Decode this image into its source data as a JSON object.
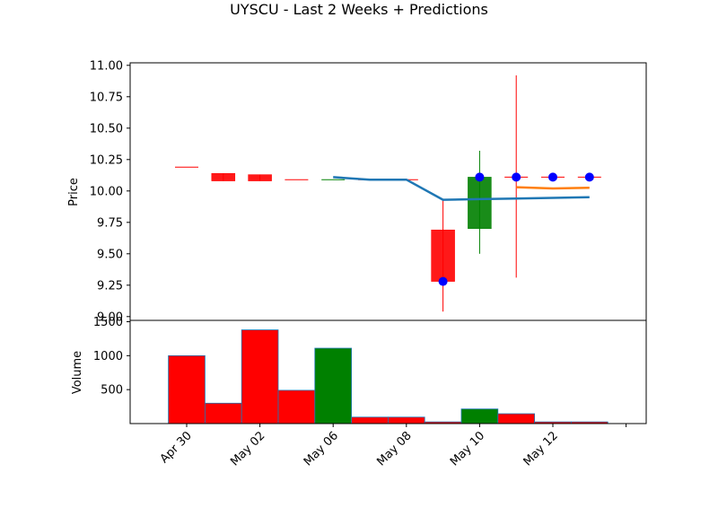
{
  "chart_data": {
    "type": "candlestick",
    "title": "UYSCU - Last 2 Weeks + Predictions",
    "price_panel": {
      "ylabel": "Price",
      "ylim": [
        8.97,
        11.02
      ],
      "yticks": [
        "9.00",
        "9.25",
        "9.50",
        "9.75",
        "10.00",
        "10.25",
        "10.50",
        "10.75",
        "11.00"
      ],
      "candles": [
        {
          "x": 0,
          "open": 10.19,
          "high": 10.19,
          "low": 10.19,
          "close": 10.19,
          "dir": "down"
        },
        {
          "x": 1,
          "open": 10.14,
          "high": 10.14,
          "low": 10.08,
          "close": 10.08,
          "dir": "down"
        },
        {
          "x": 2,
          "open": 10.13,
          "high": 10.13,
          "low": 10.08,
          "close": 10.08,
          "dir": "down"
        },
        {
          "x": 3,
          "open": 10.09,
          "high": 10.09,
          "low": 10.09,
          "close": 10.09,
          "dir": "down"
        },
        {
          "x": 4,
          "open": 10.09,
          "high": 10.09,
          "low": 10.09,
          "close": 10.09,
          "dir": "up"
        },
        {
          "x": 5,
          "open": 10.09,
          "high": 10.09,
          "low": 10.09,
          "close": 10.09,
          "dir": "down"
        },
        {
          "x": 6,
          "open": 10.09,
          "high": 10.09,
          "low": 10.09,
          "close": 10.09,
          "dir": "down"
        },
        {
          "x": 7,
          "open": 9.69,
          "high": 9.93,
          "low": 9.04,
          "close": 9.28,
          "dir": "down"
        },
        {
          "x": 8,
          "open": 9.7,
          "high": 10.32,
          "low": 9.5,
          "close": 10.11,
          "dir": "up"
        },
        {
          "x": 9,
          "open": 10.11,
          "high": 10.92,
          "low": 9.31,
          "close": 10.11,
          "dir": "down"
        },
        {
          "x": 10,
          "open": 10.11,
          "high": 10.11,
          "low": 10.11,
          "close": 10.11,
          "dir": "down"
        },
        {
          "x": 11,
          "open": 10.11,
          "high": 10.11,
          "low": 10.11,
          "close": 10.11,
          "dir": "down"
        }
      ],
      "lines": [
        {
          "color": "#1f77b4",
          "points": [
            [
              4,
              10.11
            ],
            [
              5,
              10.09
            ],
            [
              6,
              10.09
            ],
            [
              7,
              9.93
            ],
            [
              8,
              9.935
            ],
            [
              9,
              9.94
            ],
            [
              10,
              9.945
            ],
            [
              11,
              9.95
            ]
          ]
        },
        {
          "color": "#ff7f0e",
          "points": [
            [
              9,
              10.03
            ],
            [
              10,
              10.02
            ],
            [
              11,
              10.025
            ]
          ]
        }
      ],
      "dots": {
        "color": "#0000ff",
        "points": [
          [
            7,
            9.28
          ],
          [
            8,
            10.11
          ],
          [
            9,
            10.11
          ],
          [
            10,
            10.11
          ],
          [
            11,
            10.11
          ]
        ]
      }
    },
    "volume_panel": {
      "ylabel": "Volume",
      "ylim": [
        0,
        1520
      ],
      "yticks": [
        "500",
        "1000",
        "1500"
      ],
      "bars": [
        {
          "x": 0,
          "value": 1000,
          "dir": "down"
        },
        {
          "x": 1,
          "value": 300,
          "dir": "down"
        },
        {
          "x": 2,
          "value": 1380,
          "dir": "down"
        },
        {
          "x": 3,
          "value": 490,
          "dir": "down"
        },
        {
          "x": 4,
          "value": 1110,
          "dir": "up"
        },
        {
          "x": 5,
          "value": 95,
          "dir": "down"
        },
        {
          "x": 6,
          "value": 95,
          "dir": "down"
        },
        {
          "x": 7,
          "value": 25,
          "dir": "down"
        },
        {
          "x": 8,
          "value": 215,
          "dir": "up"
        },
        {
          "x": 9,
          "value": 145,
          "dir": "down"
        },
        {
          "x": 10,
          "value": 25,
          "dir": "down"
        },
        {
          "x": 11,
          "value": 25,
          "dir": "down"
        }
      ]
    },
    "x_ticks": [
      {
        "x": 0,
        "label": "Apr 30"
      },
      {
        "x": 2,
        "label": "May 02"
      },
      {
        "x": 4,
        "label": "May 06"
      },
      {
        "x": 6,
        "label": "May 08"
      },
      {
        "x": 8,
        "label": "May 10"
      },
      {
        "x": 10,
        "label": "May 12"
      },
      {
        "x": 12,
        "label": ""
      }
    ],
    "colors": {
      "up": "#008000",
      "down": "#ff0000",
      "edge": "#1f77b4"
    }
  }
}
